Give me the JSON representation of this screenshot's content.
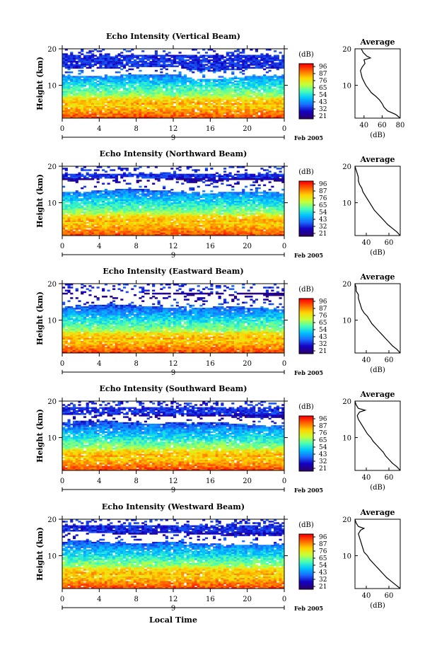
{
  "chart_data": {
    "type": "heatmap",
    "x_axis_title": "Local Time",
    "date_label": "Feb 2005",
    "day_marker": "9",
    "x_ticks": [
      "0",
      "4",
      "8",
      "12",
      "16",
      "20",
      "0"
    ],
    "xlim": [
      0,
      24
    ],
    "y_ticks": [
      "10",
      "20"
    ],
    "ylim": [
      1,
      20
    ],
    "ylabel": "Height (km)",
    "colorbar": {
      "unit": "(dB)",
      "labels": [
        "96",
        "87",
        "76",
        "65",
        "54",
        "43",
        "32",
        "21"
      ],
      "colors": [
        "#ff0000",
        "#ff6a00",
        "#ffd400",
        "#c8ff37",
        "#48ffb7",
        "#00c4ff",
        "#1a6aff",
        "#1400c0",
        "#2b0070"
      ]
    },
    "profile": {
      "title": "Average",
      "xlabel": "(dB)",
      "y_ticks": [
        "10",
        "20"
      ]
    },
    "panels": [
      {
        "title": "Echo Intensity (Vertical Beam)",
        "profile_x_ticks": [
          "40",
          "60",
          "80"
        ],
        "profile_xlim": [
          30,
          80
        ],
        "profile": [
          [
            1,
            80
          ],
          [
            2,
            75
          ],
          [
            3,
            66
          ],
          [
            4,
            62
          ],
          [
            5,
            60
          ],
          [
            6,
            57
          ],
          [
            7,
            53
          ],
          [
            8,
            48
          ],
          [
            9,
            45
          ],
          [
            10,
            42
          ],
          [
            11,
            40
          ],
          [
            12,
            38
          ],
          [
            13,
            37
          ],
          [
            14,
            36
          ],
          [
            15,
            38
          ],
          [
            16,
            41
          ],
          [
            17,
            40
          ],
          [
            17.5,
            47
          ],
          [
            18,
            43
          ],
          [
            19,
            39
          ],
          [
            20,
            37
          ]
        ],
        "white_top": 0.09,
        "white_band": [
          0.27,
          0.38
        ],
        "scatter": 0.08
      },
      {
        "title": "Echo Intensity (Northward Beam)",
        "profile_x_ticks": [
          "40",
          "60"
        ],
        "profile_xlim": [
          30,
          70
        ],
        "profile": [
          [
            1,
            70
          ],
          [
            2,
            67
          ],
          [
            3,
            63
          ],
          [
            4,
            59
          ],
          [
            5,
            56
          ],
          [
            6,
            53
          ],
          [
            7,
            50
          ],
          [
            8,
            47
          ],
          [
            9,
            45
          ],
          [
            10,
            43
          ],
          [
            11,
            41
          ],
          [
            12,
            39
          ],
          [
            13,
            37
          ],
          [
            14,
            36
          ],
          [
            15,
            34
          ],
          [
            16,
            33
          ],
          [
            17,
            33
          ],
          [
            18,
            32
          ],
          [
            19,
            31
          ],
          [
            20,
            30
          ]
        ],
        "white_top": 0.1,
        "white_band": [
          0.18,
          0.35
        ],
        "scatter": 0.05
      },
      {
        "title": "Echo Intensity (Eastward Beam)",
        "profile_x_ticks": [
          "40",
          "60"
        ],
        "profile_xlim": [
          30,
          70
        ],
        "profile": [
          [
            1,
            70
          ],
          [
            2,
            67
          ],
          [
            3,
            63
          ],
          [
            4,
            60
          ],
          [
            5,
            57
          ],
          [
            6,
            54
          ],
          [
            7,
            51
          ],
          [
            8,
            48
          ],
          [
            9,
            45
          ],
          [
            10,
            43
          ],
          [
            11,
            41
          ],
          [
            12,
            38
          ],
          [
            13,
            36
          ],
          [
            14,
            35
          ],
          [
            15,
            34
          ],
          [
            16,
            33
          ],
          [
            17,
            33
          ],
          [
            18,
            31
          ],
          [
            19,
            31
          ],
          [
            20,
            30
          ]
        ],
        "white_top": 0.13,
        "white_band": [
          0.13,
          0.32
        ],
        "scatter": 0.05
      },
      {
        "title": "Echo Intensity (Southward Beam)",
        "profile_x_ticks": [
          "40",
          "60"
        ],
        "profile_xlim": [
          30,
          70
        ],
        "profile": [
          [
            1,
            70
          ],
          [
            2,
            67
          ],
          [
            3,
            63
          ],
          [
            4,
            60
          ],
          [
            5,
            57
          ],
          [
            6,
            55
          ],
          [
            7,
            52
          ],
          [
            8,
            49
          ],
          [
            9,
            46
          ],
          [
            10,
            44
          ],
          [
            11,
            41
          ],
          [
            12,
            39
          ],
          [
            13,
            37
          ],
          [
            14,
            35
          ],
          [
            15,
            33
          ],
          [
            16,
            32
          ],
          [
            17,
            34
          ],
          [
            17.5,
            39
          ],
          [
            18,
            33
          ],
          [
            19,
            31
          ],
          [
            20,
            30
          ]
        ],
        "white_top": 0.08,
        "white_band": [
          0.2,
          0.3
        ],
        "scatter": 0.07
      },
      {
        "title": "Echo Intensity (Westward Beam)",
        "profile_x_ticks": [
          "40",
          "60"
        ],
        "profile_xlim": [
          30,
          70
        ],
        "profile": [
          [
            1,
            70
          ],
          [
            2,
            66
          ],
          [
            3,
            62
          ],
          [
            4,
            58
          ],
          [
            5,
            55
          ],
          [
            6,
            52
          ],
          [
            7,
            49
          ],
          [
            8,
            46
          ],
          [
            9,
            43
          ],
          [
            10,
            41
          ],
          [
            11,
            38
          ],
          [
            12,
            37
          ],
          [
            13,
            36
          ],
          [
            14,
            35
          ],
          [
            15,
            34
          ],
          [
            16,
            33
          ],
          [
            17,
            35
          ],
          [
            17.5,
            38
          ],
          [
            18,
            33
          ],
          [
            19,
            31
          ],
          [
            20,
            30
          ]
        ],
        "white_top": 0.08,
        "white_band": [
          0.2,
          0.33
        ],
        "scatter": 0.06
      }
    ]
  }
}
